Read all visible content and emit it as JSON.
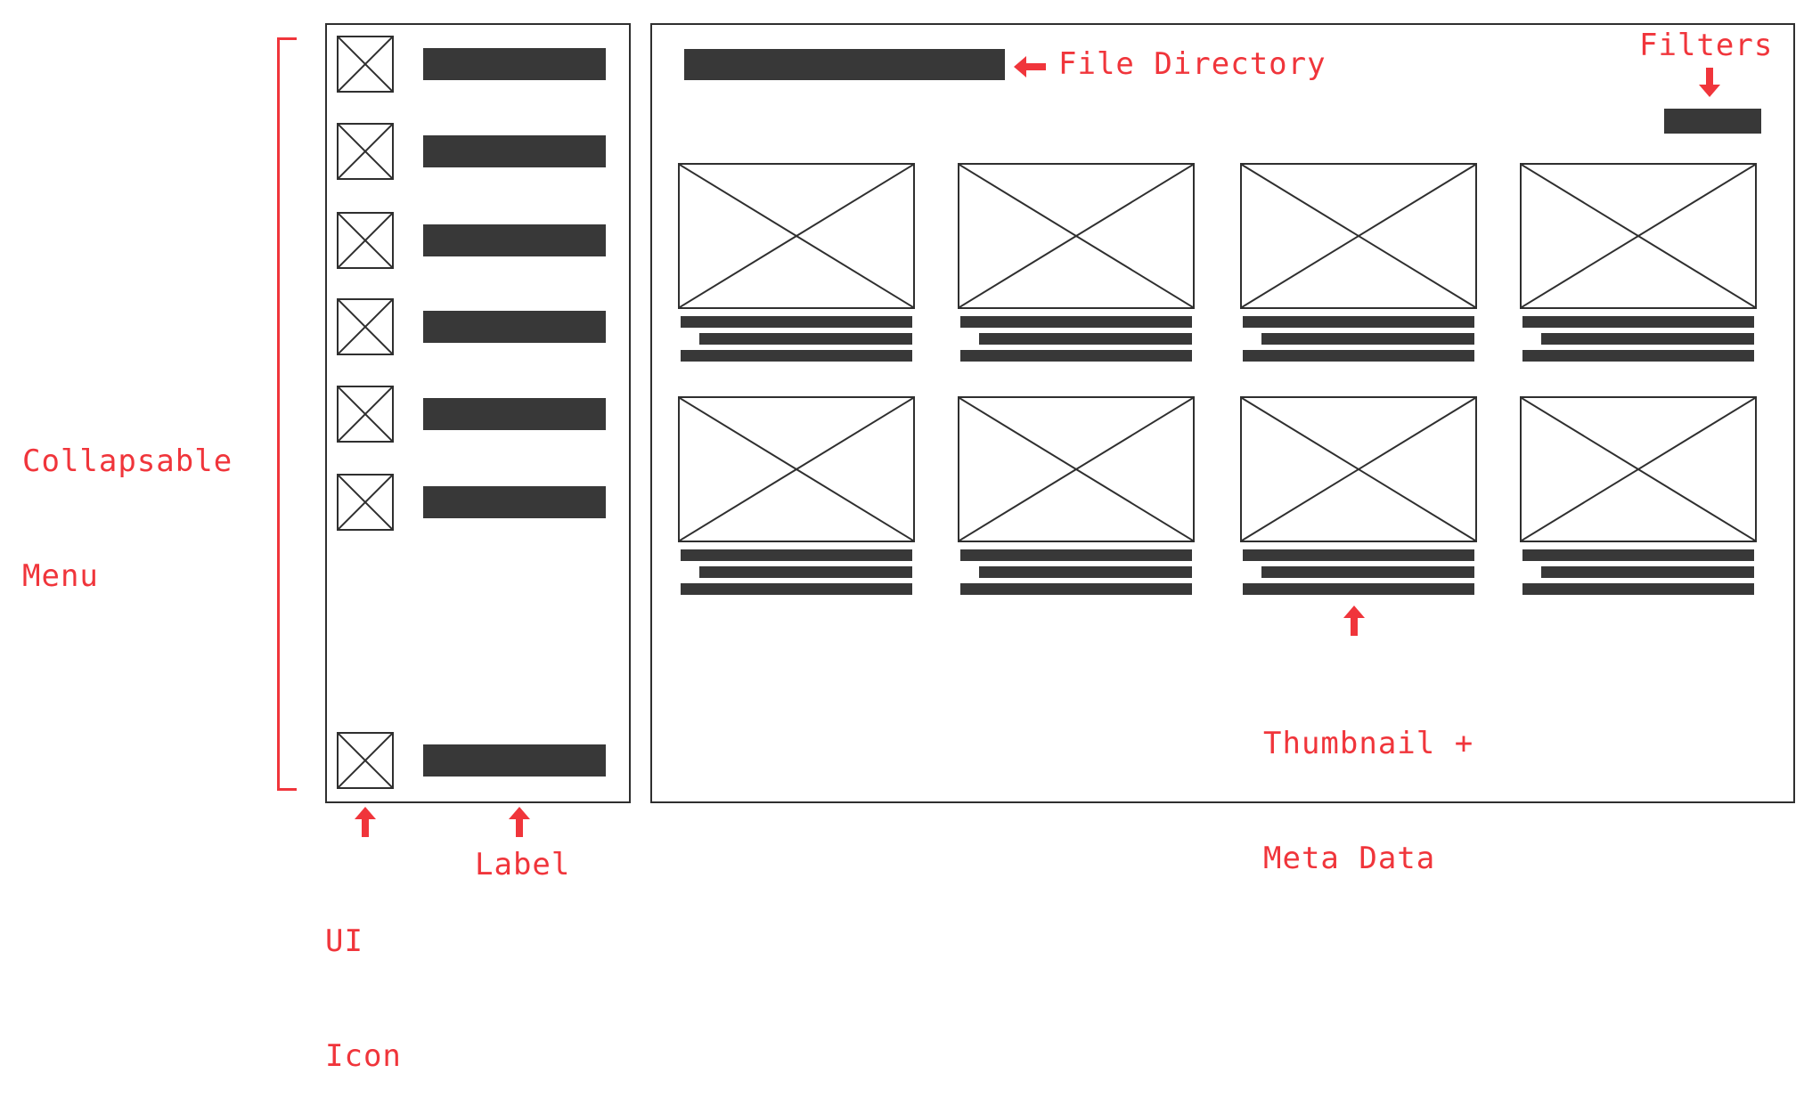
{
  "annotations": {
    "collapsable_menu": [
      "Collapsable",
      "Menu"
    ],
    "file_directory": "File Directory",
    "filters": "Filters",
    "thumbnail_meta": [
      "Thumbnail +",
      "Meta Data"
    ],
    "ui_icon": [
      "UI",
      "Icon"
    ],
    "label": "Label"
  },
  "colors": {
    "annotation": "#f0353b",
    "wire_stroke": "#2f2f2f",
    "bar_fill": "#383838"
  },
  "sidebar": {
    "items": [
      {
        "icon": "placeholder-image-icon"
      },
      {
        "icon": "placeholder-image-icon"
      },
      {
        "icon": "placeholder-image-icon"
      },
      {
        "icon": "placeholder-image-icon"
      },
      {
        "icon": "placeholder-image-icon"
      },
      {
        "icon": "placeholder-image-icon"
      },
      {
        "icon": "placeholder-image-icon"
      }
    ]
  },
  "grid": {
    "rows": 2,
    "columns": 4,
    "meta_lines_per_card": 3
  }
}
